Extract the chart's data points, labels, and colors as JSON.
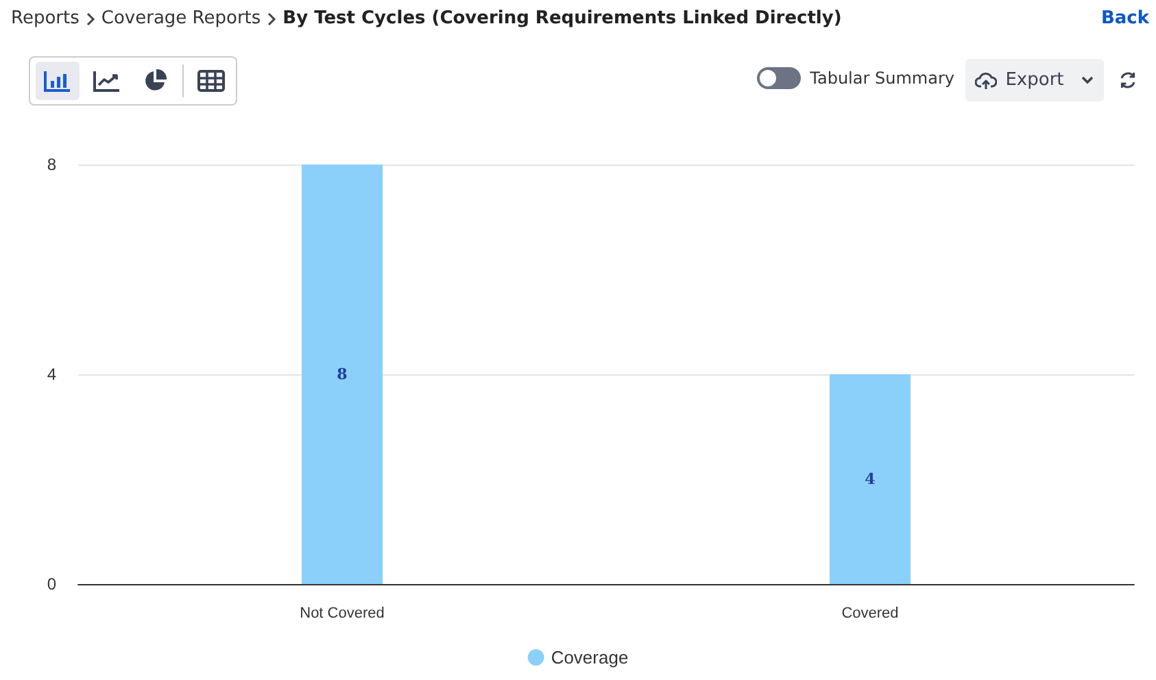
{
  "chart_data": {
    "type": "bar",
    "title": "By Test Cycles (Covering Requirements Linked Directly)",
    "annotations": [
      "Reports",
      "Coverage Reports",
      "Back",
      "Tabular Summary",
      "Export"
    ],
    "categories": [
      "Not Covered",
      "Covered"
    ],
    "series": [
      {
        "name": "Coverage",
        "color": "#8ad0fa",
        "values": [
          8,
          4
        ]
      }
    ],
    "ylim": [
      0,
      8
    ],
    "yticks": [
      0,
      4,
      8
    ],
    "grid": "y",
    "legend": "bottom",
    "data_labels": true
  }
}
